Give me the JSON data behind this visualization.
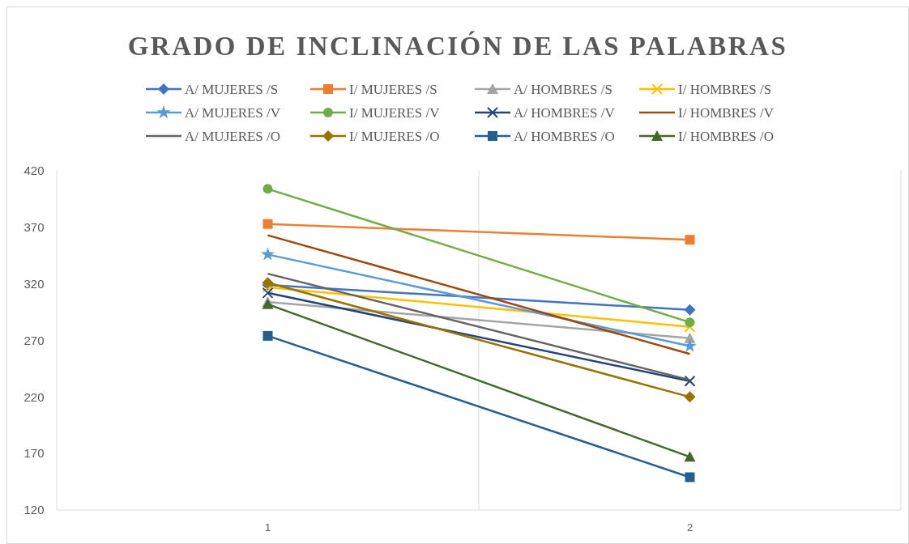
{
  "chart_data": {
    "type": "line",
    "title": "GRADO DE INCLINACIÓN DE LAS PALABRAS",
    "categories": [
      "1",
      "2"
    ],
    "ylim": [
      120,
      420
    ],
    "yticks": [
      120,
      170,
      220,
      270,
      320,
      370,
      420
    ],
    "grid": "x",
    "legend": "top",
    "series": [
      {
        "name": "A/ MUJERES /S",
        "color": "#4472c4",
        "marker": "diamond",
        "values": [
          319,
          297
        ]
      },
      {
        "name": "I/ MUJERES /S",
        "color": "#ed7d31",
        "marker": "square",
        "values": [
          373,
          359
        ]
      },
      {
        "name": "A/ HOMBRES /S",
        "color": "#a5a5a5",
        "marker": "triangle",
        "values": [
          304,
          272
        ]
      },
      {
        "name": "I/ HOMBRES /S",
        "color": "#ffc000",
        "marker": "cross",
        "values": [
          317,
          282
        ]
      },
      {
        "name": "A/ MUJERES /V",
        "color": "#5b9bd5",
        "marker": "star",
        "values": [
          346,
          265
        ]
      },
      {
        "name": "I/ MUJERES /V",
        "color": "#70ad47",
        "marker": "circle",
        "values": [
          404,
          286
        ]
      },
      {
        "name": "A/ HOMBRES /V",
        "color": "#264478",
        "marker": "cross",
        "values": [
          312,
          234
        ]
      },
      {
        "name": "I/ HOMBRES /V",
        "color": "#9e480e",
        "marker": "none",
        "values": [
          363,
          258
        ]
      },
      {
        "name": "A/ MUJERES /O",
        "color": "#636363",
        "marker": "none",
        "values": [
          329,
          235
        ]
      },
      {
        "name": "I/ MUJERES /O",
        "color": "#997300",
        "marker": "diamond",
        "values": [
          321,
          220
        ]
      },
      {
        "name": "A/ HOMBRES /O",
        "color": "#255e91",
        "marker": "square",
        "values": [
          274,
          149
        ]
      },
      {
        "name": "I/ HOMBRES /O",
        "color": "#43682b",
        "marker": "triangle",
        "values": [
          302,
          167
        ]
      }
    ]
  }
}
